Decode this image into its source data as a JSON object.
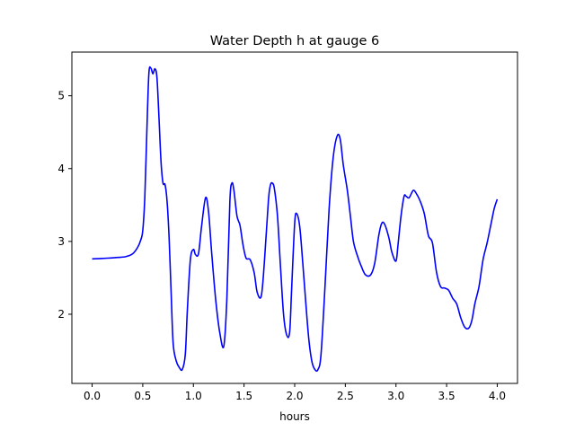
{
  "chart_data": {
    "type": "line",
    "title": "Water Depth h at gauge 6",
    "xlabel": "hours",
    "ylabel": "",
    "xlim": [
      -0.2,
      4.2
    ],
    "ylim": [
      1.05,
      5.6
    ],
    "xticks": [
      0.0,
      0.5,
      1.0,
      1.5,
      2.0,
      2.5,
      3.0,
      3.5,
      4.0
    ],
    "xtick_labels": [
      "0.0",
      "0.5",
      "1.0",
      "1.5",
      "2.0",
      "2.5",
      "3.0",
      "3.5",
      "4.0"
    ],
    "yticks": [
      2,
      3,
      4,
      5
    ],
    "ytick_labels": [
      "2",
      "3",
      "4",
      "5"
    ],
    "grid": false,
    "series": [
      {
        "color": "#0000ff",
        "x": [
          0.0,
          0.15,
          0.25,
          0.33,
          0.4,
          0.45,
          0.48,
          0.5,
          0.52,
          0.54,
          0.56,
          0.58,
          0.6,
          0.62,
          0.64,
          0.66,
          0.68,
          0.7,
          0.72,
          0.74,
          0.76,
          0.78,
          0.8,
          0.83,
          0.86,
          0.89,
          0.92,
          0.94,
          0.97,
          1.0,
          1.02,
          1.05,
          1.08,
          1.12,
          1.15,
          1.18,
          1.22,
          1.26,
          1.3,
          1.33,
          1.36,
          1.38,
          1.4,
          1.43,
          1.46,
          1.49,
          1.52,
          1.56,
          1.6,
          1.63,
          1.67,
          1.7,
          1.74,
          1.76,
          1.78,
          1.8,
          1.83,
          1.86,
          1.89,
          1.92,
          1.95,
          1.97,
          2.0,
          2.02,
          2.05,
          2.08,
          2.11,
          2.14,
          2.17,
          2.2,
          2.23,
          2.26,
          2.3,
          2.34,
          2.38,
          2.42,
          2.45,
          2.48,
          2.52,
          2.55,
          2.58,
          2.62,
          2.66,
          2.7,
          2.75,
          2.79,
          2.83,
          2.86,
          2.89,
          2.93,
          2.96,
          3.0,
          3.02,
          3.05,
          3.08,
          3.1,
          3.13,
          3.17,
          3.2,
          3.24,
          3.28,
          3.32,
          3.36,
          3.4,
          3.44,
          3.48,
          3.52,
          3.56,
          3.6,
          3.64,
          3.68,
          3.72,
          3.75,
          3.78,
          3.82,
          3.86,
          3.9,
          3.94,
          3.97,
          4.0
        ],
        "y": [
          2.76,
          2.77,
          2.78,
          2.79,
          2.83,
          2.92,
          3.02,
          3.15,
          3.6,
          4.5,
          5.3,
          5.38,
          5.3,
          5.37,
          5.25,
          4.7,
          4.1,
          3.8,
          3.78,
          3.55,
          3.05,
          2.3,
          1.6,
          1.36,
          1.27,
          1.24,
          1.45,
          2.05,
          2.75,
          2.89,
          2.82,
          2.83,
          3.2,
          3.6,
          3.4,
          2.85,
          2.2,
          1.75,
          1.56,
          2.2,
          3.55,
          3.8,
          3.7,
          3.35,
          3.22,
          2.95,
          2.77,
          2.75,
          2.57,
          2.3,
          2.25,
          2.7,
          3.55,
          3.77,
          3.8,
          3.72,
          3.35,
          2.65,
          2.0,
          1.72,
          1.75,
          2.35,
          3.25,
          3.38,
          3.2,
          2.7,
          2.15,
          1.65,
          1.35,
          1.24,
          1.24,
          1.45,
          2.4,
          3.45,
          4.15,
          4.45,
          4.4,
          4.05,
          3.7,
          3.35,
          3.0,
          2.8,
          2.65,
          2.54,
          2.54,
          2.7,
          3.08,
          3.25,
          3.23,
          3.05,
          2.85,
          2.73,
          2.95,
          3.35,
          3.62,
          3.62,
          3.6,
          3.7,
          3.66,
          3.55,
          3.38,
          3.08,
          2.98,
          2.58,
          2.38,
          2.36,
          2.33,
          2.22,
          2.14,
          1.95,
          1.82,
          1.81,
          1.92,
          2.15,
          2.38,
          2.75,
          2.98,
          3.25,
          3.45,
          3.58
        ]
      }
    ]
  }
}
